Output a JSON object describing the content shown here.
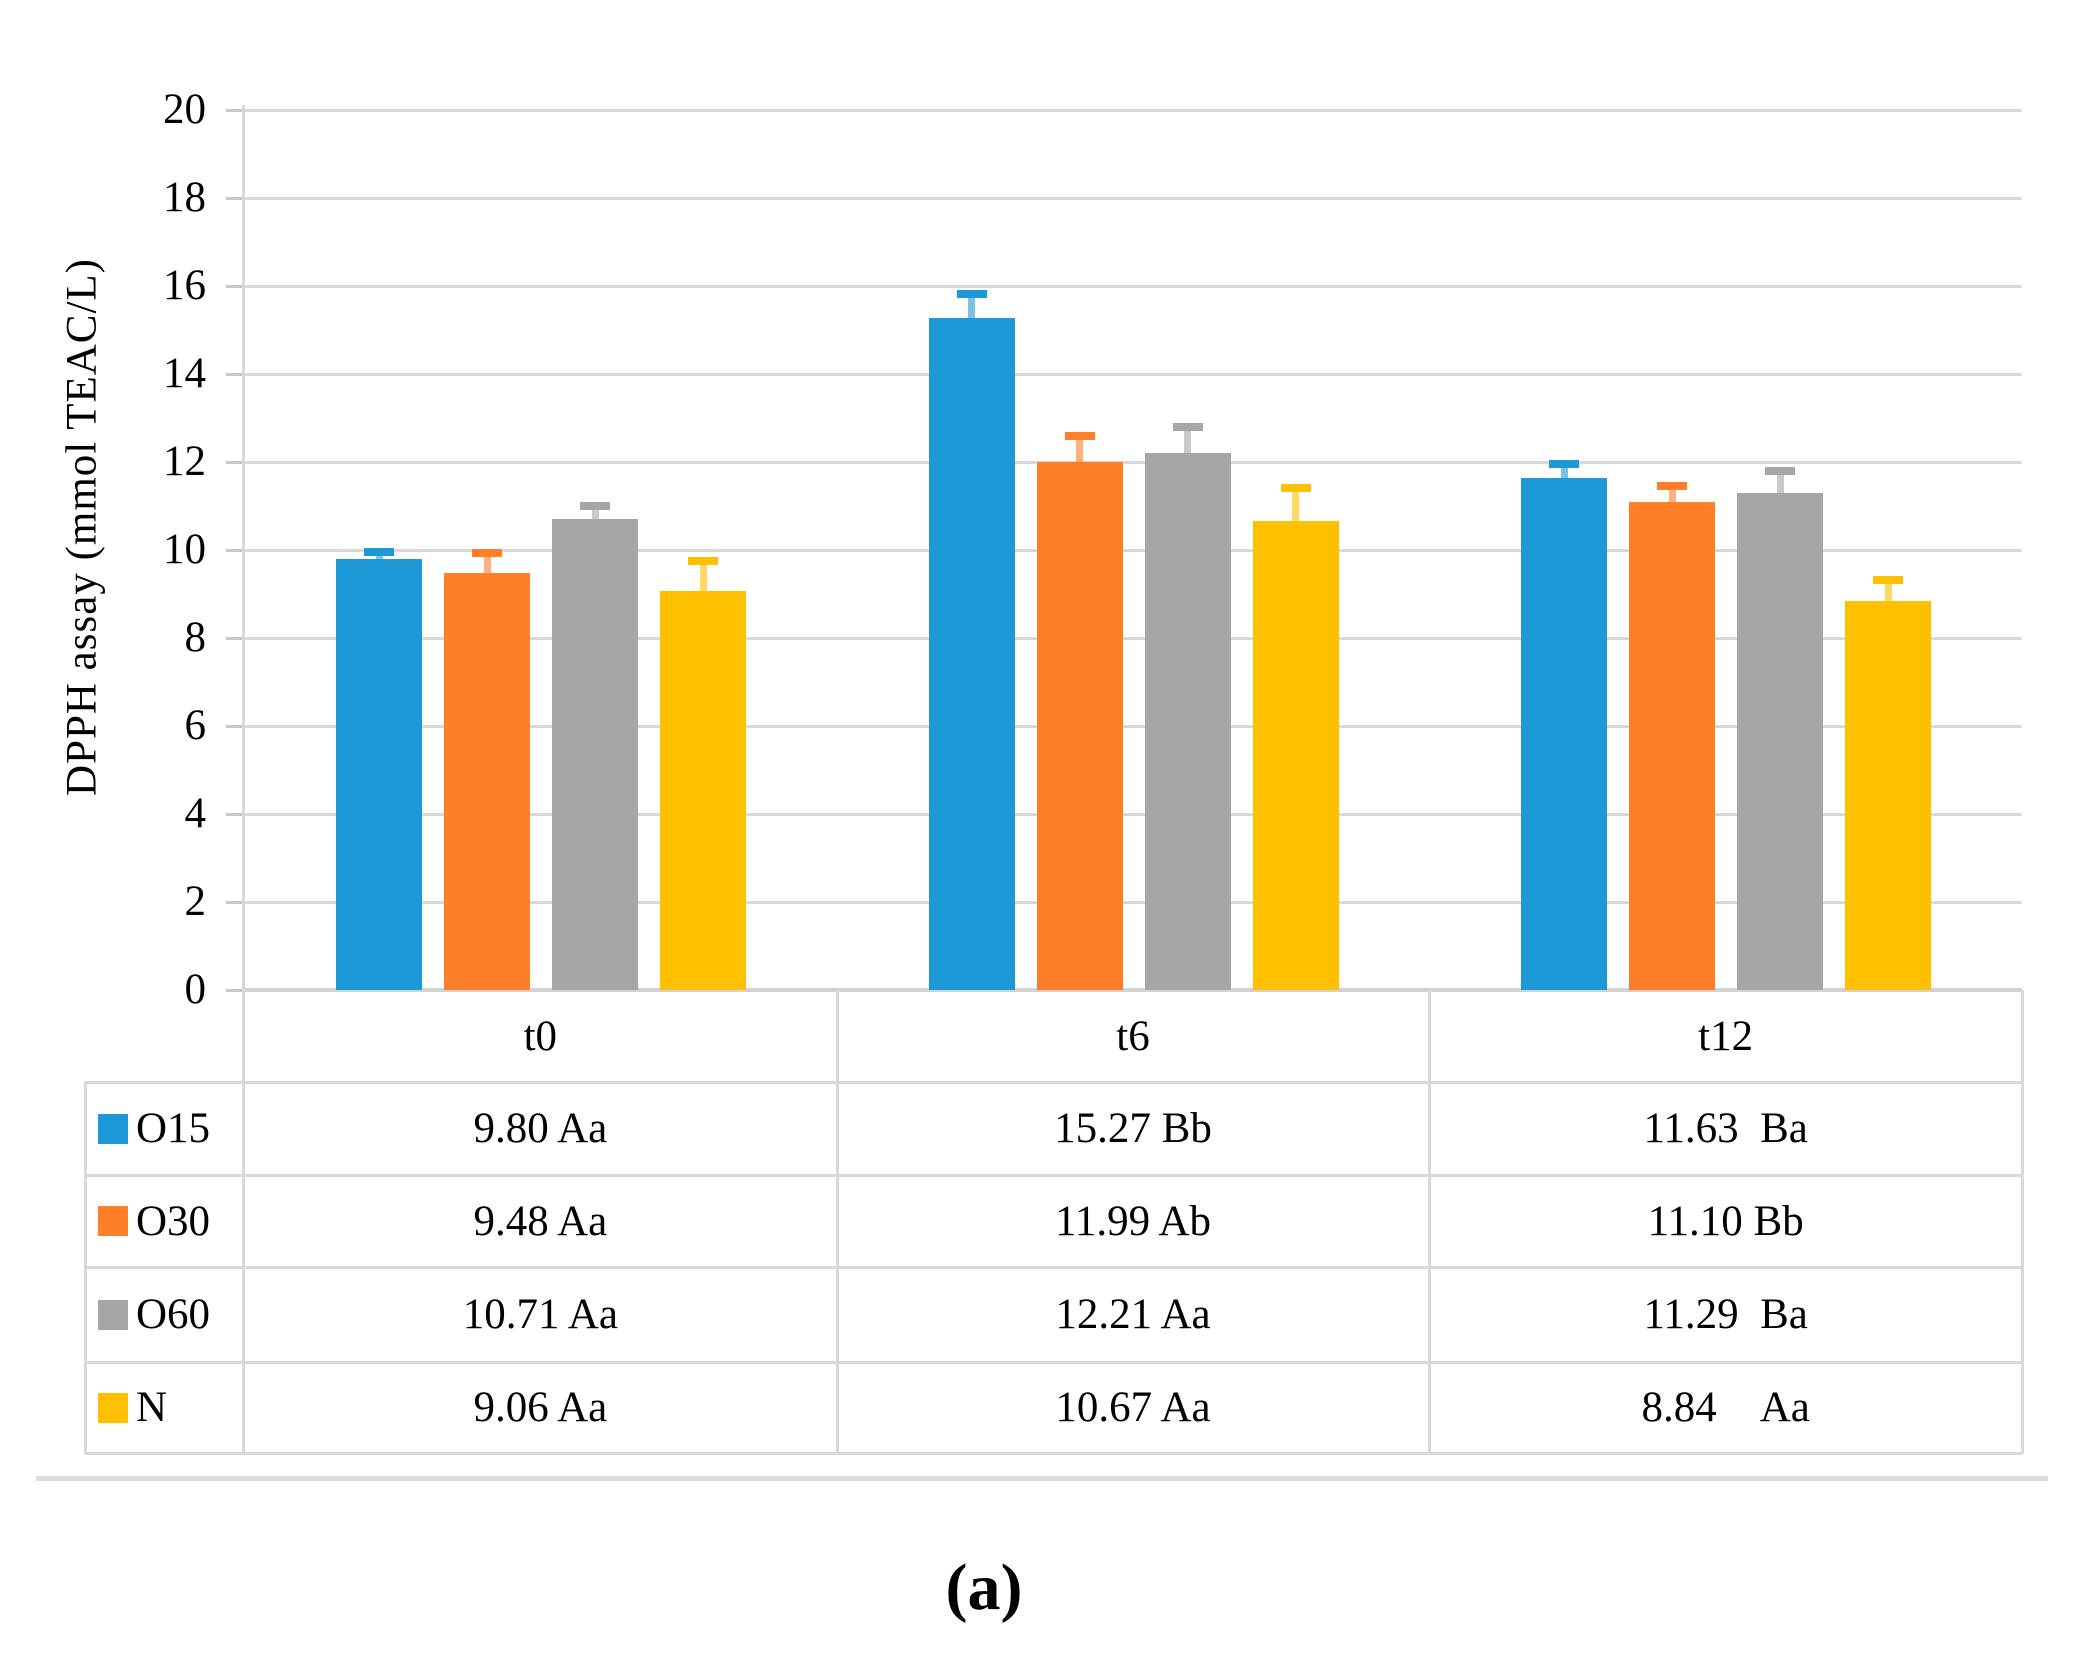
{
  "chart_data": {
    "type": "bar",
    "title": "",
    "ylabel": "DPPH assay (mmol TEAC/L)",
    "xlabel": "",
    "ylim": [
      0,
      20
    ],
    "ytick_step": 2,
    "yticks": [
      0,
      2,
      4,
      6,
      8,
      10,
      12,
      14,
      16,
      18,
      20
    ],
    "grid": "horizontal",
    "legend_position": "table-left",
    "categories": [
      "t0",
      "t6",
      "t12"
    ],
    "series": [
      {
        "name": "O15",
        "color": "#1E99D7",
        "values": [
          9.8,
          15.27,
          11.63
        ],
        "errors": [
          0.15,
          0.55,
          0.33
        ],
        "cells": [
          "9.80 Aa",
          "15.27 Bb",
          "11.63 Ba"
        ]
      },
      {
        "name": "O30",
        "color": "#FF7E27",
        "values": [
          9.48,
          11.99,
          11.1
        ],
        "errors": [
          0.45,
          0.6,
          0.35
        ],
        "cells": [
          "9.48 Aa",
          "11.99 Ab",
          "11.10 Bb"
        ]
      },
      {
        "name": "O60",
        "color": "#A6A6A6",
        "values": [
          10.71,
          12.21,
          11.29
        ],
        "errors": [
          0.3,
          0.58,
          0.5
        ],
        "cells": [
          "10.71 Aa",
          "12.21 Aa",
          "11.29 Ba"
        ]
      },
      {
        "name": "N",
        "color": "#FFC000",
        "values": [
          9.06,
          10.67,
          8.84
        ],
        "errors": [
          0.68,
          0.75,
          0.48
        ],
        "cells": [
          "9.06 Aa",
          "10.67 Aa",
          "8.84 Aa"
        ]
      }
    ],
    "caption": "(a)"
  }
}
